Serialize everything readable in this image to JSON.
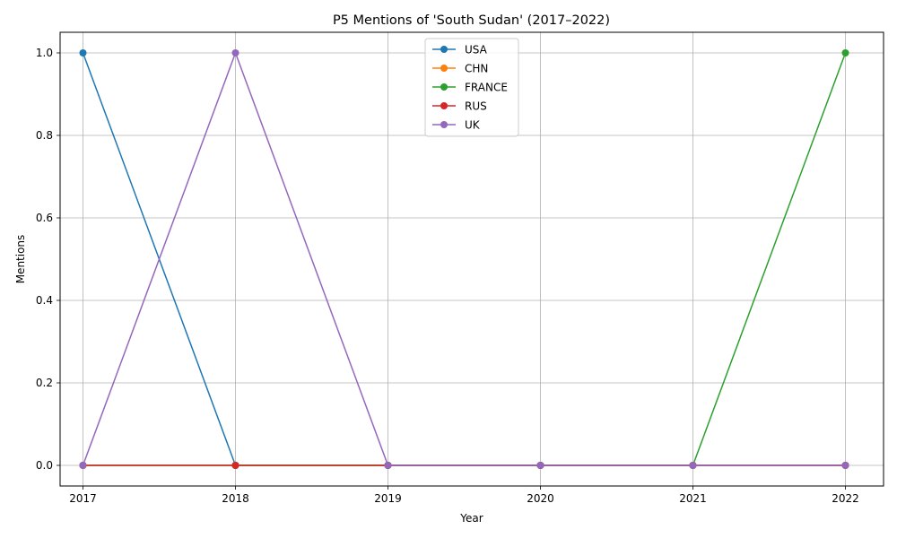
{
  "chart_data": {
    "type": "line",
    "title": "P5 Mentions of 'South Sudan' (2017–2022)",
    "xlabel": "Year",
    "ylabel": "Mentions",
    "x": [
      2017,
      2018,
      2019,
      2020,
      2021,
      2022
    ],
    "xlim": [
      2016.85,
      2022.25
    ],
    "ylim": [
      -0.05,
      1.05
    ],
    "yticks": [
      0.0,
      0.2,
      0.4,
      0.6,
      0.8,
      1.0
    ],
    "ytick_labels": [
      "0.0",
      "0.2",
      "0.4",
      "0.6",
      "0.8",
      "1.0"
    ],
    "xtick_labels": [
      "2017",
      "2018",
      "2019",
      "2020",
      "2021",
      "2022"
    ],
    "grid": true,
    "legend_position": "top-center",
    "series": [
      {
        "name": "USA",
        "color": "#1f77b4",
        "values": [
          1,
          0,
          0,
          0,
          0,
          0
        ]
      },
      {
        "name": "CHN",
        "color": "#ff7f0e",
        "values": [
          0,
          0,
          0,
          0,
          0,
          0
        ]
      },
      {
        "name": "FRANCE",
        "color": "#2ca02c",
        "values": [
          0,
          0,
          0,
          0,
          0,
          1
        ]
      },
      {
        "name": "RUS",
        "color": "#d62728",
        "values": [
          0,
          0,
          0,
          0,
          0,
          0
        ]
      },
      {
        "name": "UK",
        "color": "#9467bd",
        "values": [
          0,
          1,
          0,
          0,
          0,
          0
        ]
      }
    ]
  }
}
